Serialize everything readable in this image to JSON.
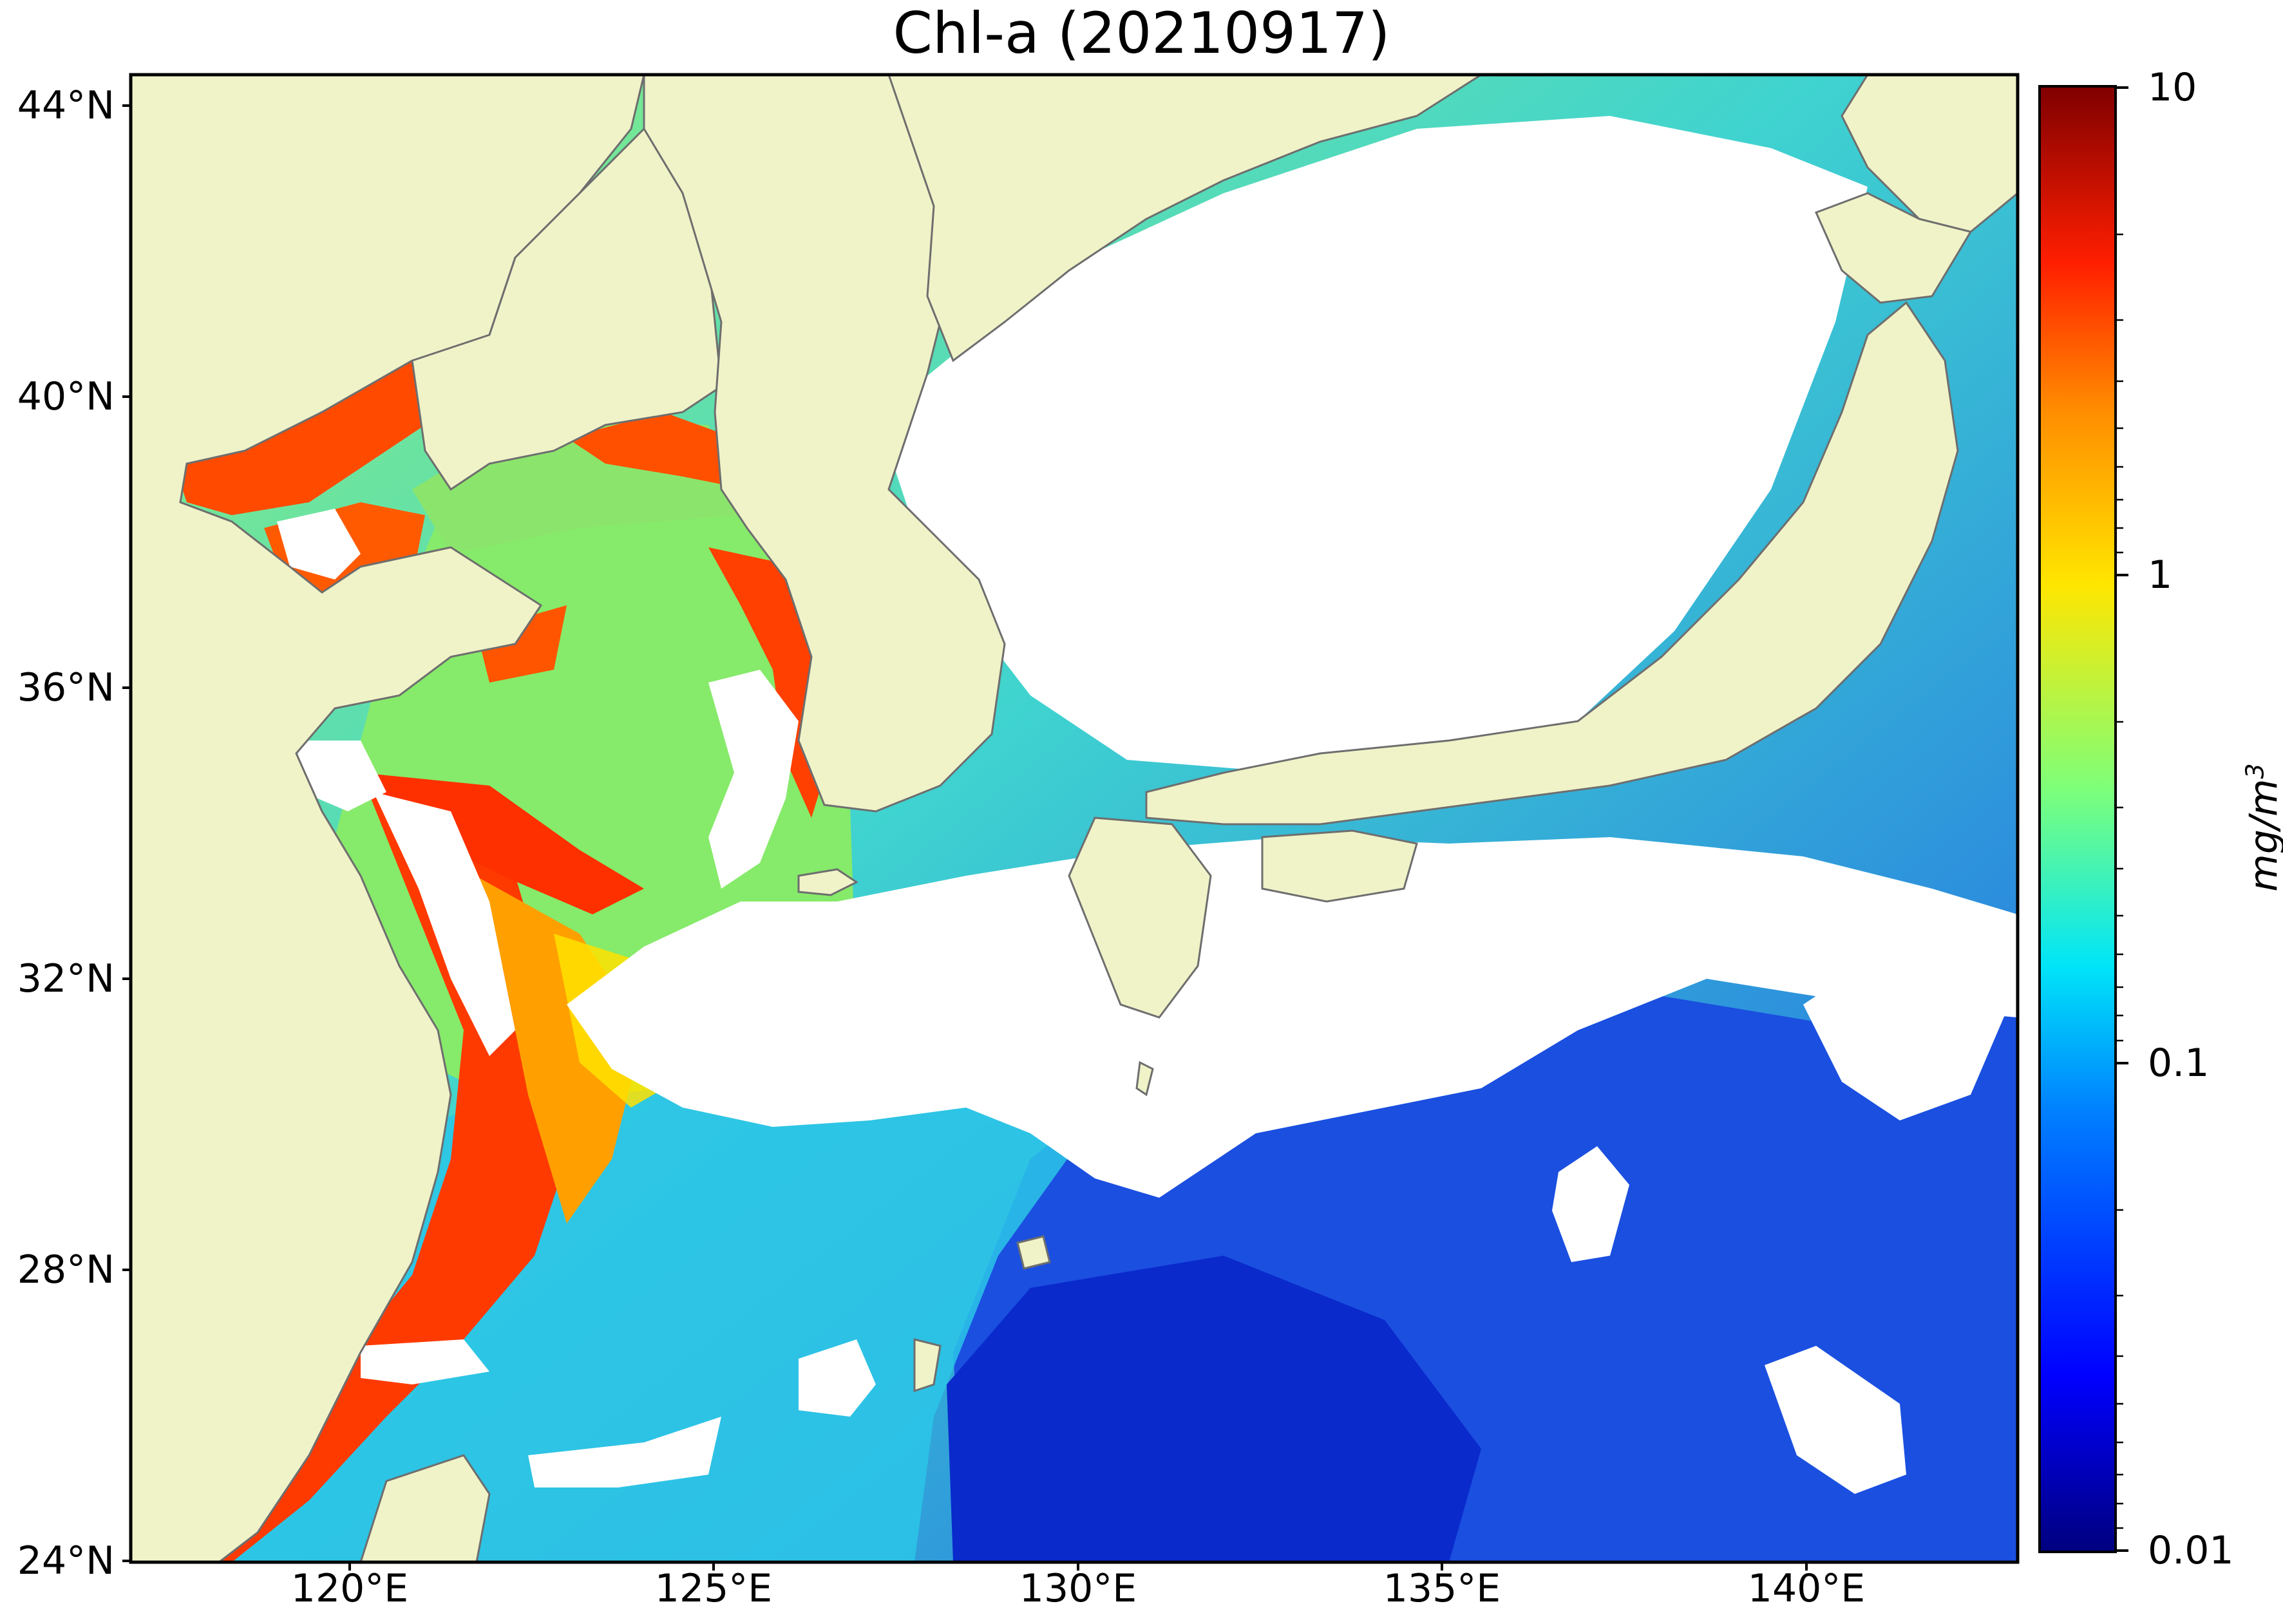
{
  "title": "Chl-a (20210917)",
  "lat_labels": [
    "44°N",
    "40°N",
    "36°N",
    "32°N",
    "28°N",
    "24°N"
  ],
  "lon_labels": [
    "120°E",
    "125°E",
    "130°E",
    "135°E",
    "140°E"
  ],
  "colorbar": {
    "ticks": [
      "10",
      "1",
      "0.1",
      "0.01"
    ],
    "unit": "mg/m",
    "unit_sup": "3",
    "scale": "log",
    "range": [
      0.01,
      10
    ],
    "colormap": [
      "#00007f",
      "#0000ff",
      "#007fff",
      "#00e5f8",
      "#7dff7a",
      "#ffe600",
      "#ff8c00",
      "#ff1e00",
      "#7f0000"
    ]
  },
  "map": {
    "extent_lon": [
      117,
      143.3
    ],
    "extent_lat": [
      24,
      44.5
    ],
    "land_color": "#f0f3c8",
    "cloud_color": "#ffffff",
    "coast_color": "#6e6e6e"
  }
}
